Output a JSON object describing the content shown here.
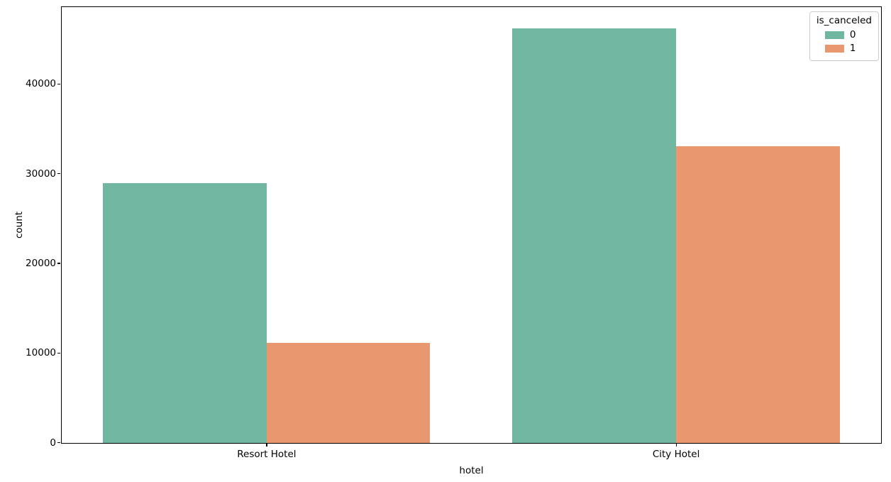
{
  "figure": {
    "background": "#ffffff",
    "spine_color": "#000000"
  },
  "chart_data": {
    "type": "bar",
    "title": "",
    "categories": [
      "Resort Hotel",
      "City Hotel"
    ],
    "series": [
      {
        "name": "0",
        "color": "#71b6a0",
        "values": [
          28938,
          46228
        ]
      },
      {
        "name": "1",
        "color": "#e9976f",
        "values": [
          11122,
          33102
        ]
      }
    ],
    "xlabel": "hotel",
    "ylabel": "count",
    "ylim": [
      0,
      48539
    ],
    "yticks": [
      0,
      10000,
      20000,
      30000,
      40000
    ],
    "grid": false,
    "legend": {
      "title": "is_canceled",
      "position": "upper-right",
      "entries": [
        {
          "label": "0",
          "color": "#71b6a0"
        },
        {
          "label": "1",
          "color": "#e9976f"
        }
      ]
    }
  }
}
